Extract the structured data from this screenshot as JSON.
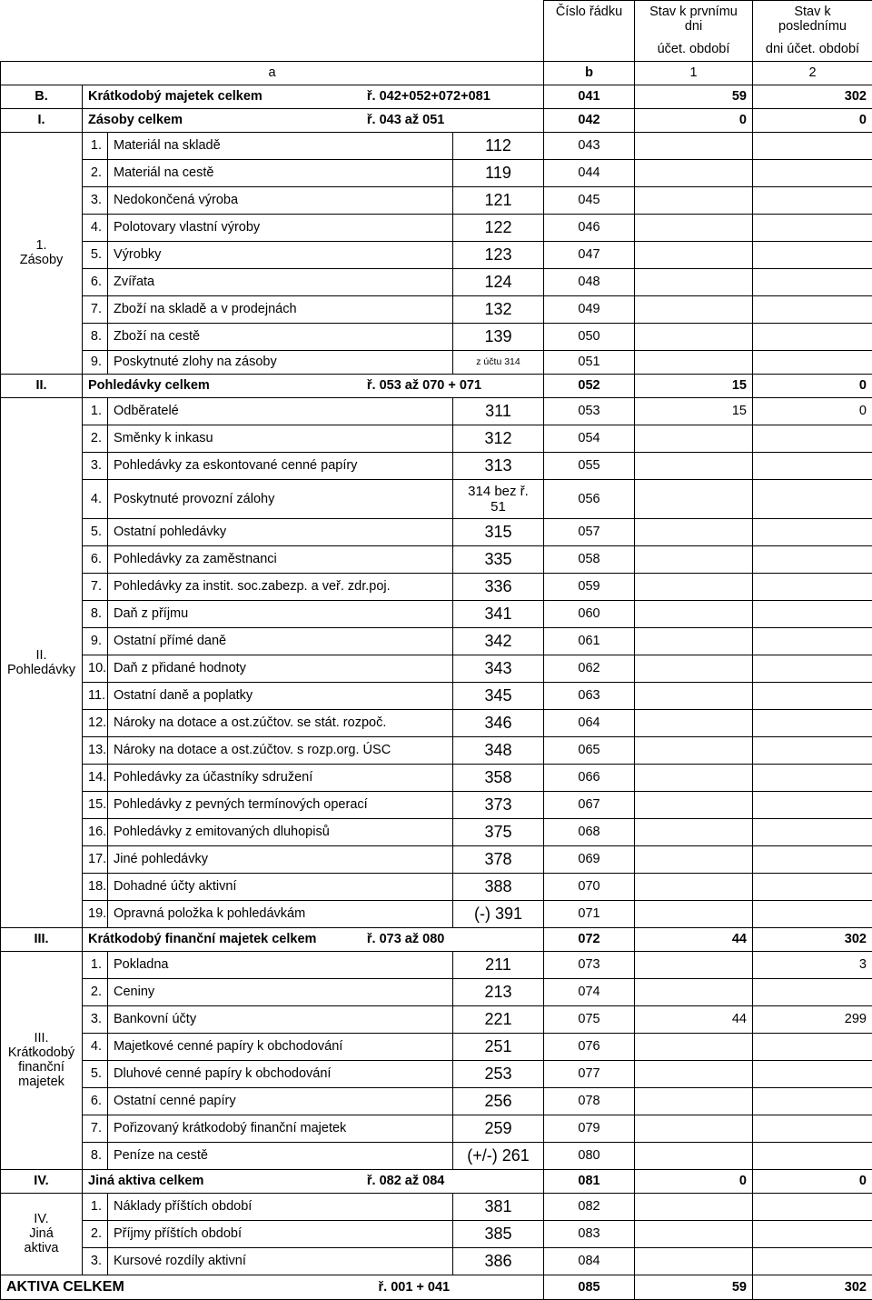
{
  "header": {
    "col_b_line1": "Číslo řádku",
    "col_1_line1": "Stav k prvnímu dni",
    "col_1_line2": "účet. období",
    "col_2_line1": "Stav k poslednímu",
    "col_2_line2": "dni účet. období",
    "sub_a": "a",
    "sub_b": "b",
    "sub_1": "1",
    "sub_2": "2"
  },
  "rows": [
    {
      "type": "sectionHeader",
      "secId": "B.",
      "name": "Krátkodobý majetek celkem",
      "formula": "ř. 042+052+072+081",
      "b": "041",
      "v1": "59",
      "v2": "302"
    },
    {
      "type": "sectionHeader",
      "secId": "I.",
      "name": "Zásoby celkem",
      "formula": "ř. 043 až 051",
      "b": "042",
      "v1": "0",
      "v2": "0"
    },
    {
      "type": "item",
      "group": "g1",
      "num": "1.",
      "name": "Materiál na skladě",
      "acct": "112",
      "b": "043"
    },
    {
      "type": "item",
      "group": "g1",
      "num": "2.",
      "name": "Materiál na cestě",
      "acct": "119",
      "b": "044"
    },
    {
      "type": "item",
      "group": "g1",
      "num": "3.",
      "name": "Nedokončená výroba",
      "acct": "121",
      "b": "045"
    },
    {
      "type": "item",
      "group": "g1",
      "num": "4.",
      "name": "Polotovary vlastní výroby",
      "acct": "122",
      "b": "046"
    },
    {
      "type": "item",
      "group": "g1",
      "num": "5.",
      "name": "Výrobky",
      "acct": "123",
      "b": "047"
    },
    {
      "type": "item",
      "group": "g1",
      "num": "6.",
      "name": "Zvířata",
      "acct": "124",
      "b": "048"
    },
    {
      "type": "item",
      "group": "g1",
      "num": "7.",
      "name": "Zboží na skladě a v prodejnách",
      "acct": "132",
      "b": "049"
    },
    {
      "type": "item",
      "group": "g1",
      "num": "8.",
      "name": "Zboží na cestě",
      "acct": "139",
      "b": "050"
    },
    {
      "type": "item",
      "group": "g1",
      "num": "9.",
      "name": "Poskytnuté zlohy na zásoby",
      "acct": "z účtu 314",
      "acctSmall": true,
      "b": "051"
    },
    {
      "type": "sectionHeader",
      "secId": "II.",
      "name": "Pohledávky celkem",
      "formula": "ř. 053 až 070 + 071",
      "b": "052",
      "v1": "15",
      "v2": "0"
    },
    {
      "type": "item",
      "group": "g2",
      "num": "1.",
      "name": "Odběratelé",
      "acct": "311",
      "b": "053",
      "v1": "15",
      "v2": "0"
    },
    {
      "type": "item",
      "group": "g2",
      "num": "2.",
      "name": "Směnky k inkasu",
      "acct": "312",
      "b": "054"
    },
    {
      "type": "item",
      "group": "g2",
      "num": "3.",
      "name": "Pohledávky za eskontované cenné papíry",
      "acct": "313",
      "b": "055"
    },
    {
      "type": "item",
      "group": "g2",
      "num": "4.",
      "name": "Poskytnuté provozní zálohy",
      "acct": "314 bez ř. 51",
      "acctSmallMixed": true,
      "b": "056"
    },
    {
      "type": "item",
      "group": "g2",
      "num": "5.",
      "name": "Ostatní pohledávky",
      "acct": "315",
      "b": "057"
    },
    {
      "type": "item",
      "group": "g2",
      "num": "6.",
      "name": "Pohledávky za zaměstnanci",
      "acct": "335",
      "b": "058"
    },
    {
      "type": "item",
      "group": "g2",
      "num": "7.",
      "name": "Pohledávky za instit. soc.zabezp. a veř. zdr.poj.",
      "acct": "336",
      "b": "059"
    },
    {
      "type": "item",
      "group": "g2",
      "num": "8.",
      "name": "Daň z příjmu",
      "acct": "341",
      "b": "060"
    },
    {
      "type": "item",
      "group": "g2",
      "num": "9.",
      "name": "Ostatní přímé daně",
      "acct": "342",
      "b": "061"
    },
    {
      "type": "item",
      "group": "g2",
      "num": "10.",
      "name": "Daň z přidané hodnoty",
      "acct": "343",
      "b": "062"
    },
    {
      "type": "item",
      "group": "g2",
      "num": "11.",
      "name": "Ostatní daně a poplatky",
      "acct": "345",
      "b": "063"
    },
    {
      "type": "item",
      "group": "g2",
      "num": "12.",
      "name": "Nároky na dotace a ost.zúčtov. se stát. rozpoč.",
      "acct": "346",
      "b": "064"
    },
    {
      "type": "item",
      "group": "g2",
      "num": "13.",
      "name": "Nároky na dotace a ost.zúčtov. s rozp.org. ÚSC",
      "acct": "348",
      "b": "065"
    },
    {
      "type": "item",
      "group": "g2",
      "num": "14.",
      "name": "Pohledávky za účastníky sdružení",
      "acct": "358",
      "b": "066"
    },
    {
      "type": "item",
      "group": "g2",
      "num": "15.",
      "name": "Pohledávky z pevných termínových operací",
      "acct": "373",
      "b": "067"
    },
    {
      "type": "item",
      "group": "g2",
      "num": "16.",
      "name": "Pohledávky z emitovaných dluhopisů",
      "acct": "375",
      "b": "068"
    },
    {
      "type": "item",
      "group": "g2",
      "num": "17.",
      "name": "Jiné pohledávky",
      "acct": "378",
      "b": "069"
    },
    {
      "type": "item",
      "group": "g2",
      "num": "18.",
      "name": "Dohadné účty aktivní",
      "acct": "388",
      "b": "070"
    },
    {
      "type": "item",
      "group": "g2",
      "num": "19.",
      "name": "Opravná položka k pohledávkám",
      "acct": "(-) 391",
      "b": "071"
    },
    {
      "type": "sectionHeader",
      "secId": "III.",
      "name": "Krátkodobý finanční majetek celkem",
      "formula": "ř. 073 až 080",
      "b": "072",
      "v1": "44",
      "v2": "302"
    },
    {
      "type": "item",
      "group": "g3",
      "num": "1.",
      "name": "Pokladna",
      "acct": "211",
      "b": "073",
      "v2": "3"
    },
    {
      "type": "item",
      "group": "g3",
      "num": "2.",
      "name": "Ceniny",
      "acct": "213",
      "b": "074"
    },
    {
      "type": "item",
      "group": "g3",
      "num": "3.",
      "name": "Bankovní účty",
      "acct": "221",
      "b": "075",
      "v1": "44",
      "v2": "299"
    },
    {
      "type": "item",
      "group": "g3",
      "num": "4.",
      "name": "Majetkové cenné papíry k obchodování",
      "acct": "251",
      "b": "076"
    },
    {
      "type": "item",
      "group": "g3",
      "num": "5.",
      "name": "Dluhové cenné papíry k obchodování",
      "acct": "253",
      "b": "077"
    },
    {
      "type": "item",
      "group": "g3",
      "num": "6.",
      "name": "Ostatní cenné papíry",
      "acct": "256",
      "b": "078"
    },
    {
      "type": "item",
      "group": "g3",
      "num": "7.",
      "name": "Pořizovaný krátkodobý finanční majetek",
      "acct": "259",
      "b": "079"
    },
    {
      "type": "item",
      "group": "g3",
      "num": "8.",
      "name": "Peníze na cestě",
      "acct": "(+/-) 261",
      "b": "080"
    },
    {
      "type": "sectionHeader",
      "secId": "IV.",
      "name": "Jiná aktiva celkem",
      "formula": "ř. 082 až 084",
      "b": "081",
      "v1": "0",
      "v2": "0"
    },
    {
      "type": "item",
      "group": "g4",
      "num": "1.",
      "name": "Náklady příštích období",
      "acct": "381",
      "b": "082"
    },
    {
      "type": "item",
      "group": "g4",
      "num": "2.",
      "name": "Příjmy příštích období",
      "acct": "385",
      "b": "083"
    },
    {
      "type": "item",
      "group": "g4",
      "num": "3.",
      "name": "Kursové rozdíly aktivní",
      "acct": "386",
      "b": "084"
    },
    {
      "type": "total",
      "name": "AKTIVA  CELKEM",
      "formula": "ř. 001 + 041",
      "b": "085",
      "v1": "59",
      "v2": "302"
    }
  ],
  "groups": {
    "g1": {
      "label_l1": "1.",
      "label_l2": "Zásoby"
    },
    "g2": {
      "label_l1": "II.",
      "label_l2": "Pohledávky"
    },
    "g3": {
      "label_l1": "III.",
      "label_l2": "Krátkodobý",
      "label_l3": "finanční",
      "label_l4": "majetek"
    },
    "g4": {
      "label_l1": "IV.",
      "label_l2": "Jiná",
      "label_l3": "aktiva"
    }
  }
}
